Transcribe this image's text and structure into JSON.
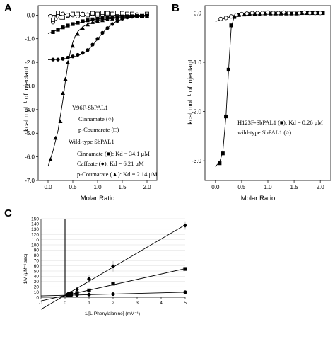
{
  "panels": {
    "a": "A",
    "b": "B",
    "c": "C"
  },
  "chart_data": [
    {
      "panel": "A",
      "type": "scatter",
      "xlabel": "Molar Ratio",
      "ylabel": "kcal mol⁻¹ of injectant",
      "xlim": [
        -0.2,
        2.2
      ],
      "ylim": [
        -7.0,
        0.4
      ],
      "xticks": [
        "0.0",
        "0.5",
        "1.0",
        "1.5",
        "2.0"
      ],
      "yticks": [
        "0.0",
        "-1.0",
        "-2.0",
        "-3.0",
        "-4.0",
        "-5.0",
        "-6.0",
        "-7.0"
      ],
      "legend_lines": [
        {
          "text": "Y96F-SbPAL1"
        },
        {
          "text": "Cinnamate (○)"
        },
        {
          "text": "p-Coumarate (□)"
        },
        {
          "text": "Wild-type SbPAL1"
        },
        {
          "text": "Cinnamate (■): Kd = 34.1 μM"
        },
        {
          "text": "Caffeate (●): Kd = 6.21 μM"
        },
        {
          "text": "p-Coumarate (▲): Kd = 2.14 μM"
        }
      ],
      "series": [
        {
          "marker": "circle-open",
          "x": [
            0.05,
            0.1,
            0.15,
            0.2,
            0.25,
            0.3,
            0.35,
            0.4,
            0.5,
            0.6,
            0.7,
            0.8,
            0.9,
            1.0,
            1.1,
            1.2,
            1.3,
            1.4,
            1.5,
            1.6,
            1.7,
            1.8,
            1.9,
            2.0
          ],
          "y": [
            -0.05,
            -0.3,
            -0.15,
            -0.05,
            -0.1,
            0.05,
            -0.05,
            -0.02,
            0.0,
            -0.05,
            0.05,
            0.02,
            0.05,
            -0.05,
            -0.02,
            0.0,
            0.05,
            -0.02,
            0.02,
            0.0,
            -0.05,
            0.02,
            0.0,
            -0.02
          ]
        },
        {
          "marker": "square-open",
          "x": [
            0.1,
            0.2,
            0.3,
            0.4,
            0.5,
            0.6,
            0.7,
            0.8,
            0.9,
            1.0,
            1.1,
            1.2,
            1.3,
            1.4,
            1.5,
            1.6,
            1.7,
            1.8,
            1.9,
            2.0
          ],
          "y": [
            -0.2,
            0.1,
            -0.1,
            0.0,
            0.05,
            0.05,
            0.02,
            0.0,
            0.08,
            0.05,
            0.1,
            0.08,
            0.05,
            0.1,
            0.08,
            0.05,
            0.05,
            0.0,
            -0.05,
            0.05
          ]
        },
        {
          "marker": "square-filled",
          "x": [
            0.1,
            0.2,
            0.3,
            0.4,
            0.5,
            0.6,
            0.7,
            0.8,
            0.9,
            1.0,
            1.1,
            1.2,
            1.3,
            1.4,
            1.5,
            1.6,
            1.7,
            1.8,
            1.9,
            2.0
          ],
          "y": [
            -0.72,
            -0.62,
            -0.52,
            -0.44,
            -0.38,
            -0.32,
            -0.26,
            -0.22,
            -0.18,
            -0.15,
            -0.12,
            -0.1,
            -0.08,
            -0.07,
            -0.06,
            -0.05,
            -0.05,
            -0.04,
            -0.04,
            -0.03
          ]
        },
        {
          "marker": "circle-filled",
          "x": [
            0.1,
            0.2,
            0.3,
            0.4,
            0.5,
            0.6,
            0.7,
            0.8,
            0.9,
            1.0,
            1.1,
            1.2,
            1.3,
            1.4,
            1.5,
            1.6,
            1.7,
            1.8,
            1.9,
            2.0
          ],
          "y": [
            -1.88,
            -1.88,
            -1.85,
            -1.8,
            -1.75,
            -1.68,
            -1.6,
            -1.48,
            -1.25,
            -1.0,
            -0.75,
            -0.55,
            -0.38,
            -0.25,
            -0.15,
            -0.1,
            -0.07,
            -0.05,
            -0.04,
            -0.03
          ]
        },
        {
          "marker": "triangle-filled",
          "x": [
            0.05,
            0.15,
            0.25,
            0.3,
            0.35,
            0.4,
            0.5,
            0.6,
            0.7,
            0.8,
            0.9,
            1.0,
            1.1,
            1.2,
            1.3,
            1.4,
            1.5,
            1.6,
            1.7,
            1.8,
            1.9,
            2.0
          ],
          "y": [
            -6.1,
            -5.2,
            -4.5,
            -3.3,
            -2.7,
            -2.0,
            -1.3,
            -0.8,
            -0.55,
            -0.4,
            -0.3,
            -0.25,
            -0.22,
            -0.18,
            -0.15,
            -0.12,
            -0.1,
            -0.08,
            -0.06,
            -0.05,
            -0.05,
            -0.04
          ]
        }
      ],
      "fits": [
        {
          "x": [
            0.0,
            0.2,
            0.4,
            0.6,
            0.8,
            1.0,
            1.2,
            1.4,
            1.6,
            1.8,
            2.0
          ],
          "y": [
            -0.78,
            -0.62,
            -0.46,
            -0.34,
            -0.24,
            -0.16,
            -0.11,
            -0.08,
            -0.06,
            -0.05,
            -0.04
          ]
        },
        {
          "x": [
            0.0,
            0.2,
            0.4,
            0.6,
            0.7,
            0.8,
            0.9,
            1.0,
            1.1,
            1.2,
            1.3,
            1.4,
            1.6,
            1.8,
            2.0
          ],
          "y": [
            -1.89,
            -1.88,
            -1.83,
            -1.72,
            -1.63,
            -1.49,
            -1.28,
            -1.02,
            -0.76,
            -0.54,
            -0.37,
            -0.24,
            -0.11,
            -0.06,
            -0.04
          ]
        },
        {
          "x": [
            0.0,
            0.1,
            0.2,
            0.3,
            0.35,
            0.4,
            0.45,
            0.5,
            0.55,
            0.6,
            0.7,
            0.8,
            1.0,
            1.2,
            1.5,
            2.0
          ],
          "y": [
            -6.4,
            -5.75,
            -4.9,
            -3.6,
            -2.8,
            -2.1,
            -1.55,
            -1.15,
            -0.88,
            -0.7,
            -0.5,
            -0.38,
            -0.25,
            -0.17,
            -0.1,
            -0.04
          ]
        },
        {
          "x": [
            0.0,
            2.0
          ],
          "y": [
            0.0,
            0.0
          ]
        }
      ]
    },
    {
      "panel": "B",
      "type": "scatter",
      "xlabel": "Molar Ratio",
      "ylabel": "kcal mol⁻¹ of injectant",
      "xlim": [
        -0.2,
        2.2
      ],
      "ylim": [
        -3.4,
        0.15
      ],
      "xticks": [
        "0.0",
        "0.5",
        "1.0",
        "1.5",
        "2.0"
      ],
      "yticks": [
        "0.0",
        "-1.0",
        "-2.0",
        "-3.0"
      ],
      "legend_lines": [
        {
          "text": "H123F-SbPAL1 (■): Kd = 0.26 μM"
        },
        {
          "text": "wild-type SbPAL1 (○)"
        }
      ],
      "series": [
        {
          "marker": "square-filled",
          "x": [
            0.08,
            0.14,
            0.2,
            0.25,
            0.3,
            0.36,
            0.45,
            0.55,
            0.65,
            0.75,
            0.85,
            0.95,
            1.05,
            1.15,
            1.25,
            1.35,
            1.45,
            1.55,
            1.65,
            1.75,
            1.85,
            1.95,
            2.05
          ],
          "y": [
            -3.05,
            -2.85,
            -2.1,
            -1.15,
            -0.25,
            -0.08,
            -0.04,
            -0.03,
            -0.02,
            -0.02,
            -0.02,
            -0.01,
            -0.01,
            -0.01,
            -0.01,
            -0.01,
            -0.01,
            -0.01,
            0.0,
            0.0,
            0.0,
            0.0,
            0.0
          ]
        },
        {
          "marker": "circle-open",
          "x": [
            0.1,
            0.2,
            0.3,
            0.4,
            0.5,
            0.6,
            0.7,
            0.8,
            0.9,
            1.0,
            1.1,
            1.2,
            1.3,
            1.4,
            1.5,
            1.6,
            1.7,
            1.8,
            1.9,
            2.0
          ],
          "y": [
            -0.12,
            -0.1,
            -0.07,
            -0.04,
            -0.02,
            -0.01,
            0.0,
            0.0,
            0.0,
            0.01,
            0.0,
            0.0,
            0.01,
            0.0,
            0.0,
            0.0,
            0.01,
            0.0,
            0.0,
            0.0
          ]
        }
      ],
      "fits": [
        {
          "x": [
            0.0,
            0.08,
            0.14,
            0.2,
            0.25,
            0.3,
            0.35,
            0.4,
            0.5,
            0.7,
            1.0,
            1.5,
            2.05
          ],
          "y": [
            -3.12,
            -3.02,
            -2.82,
            -2.1,
            -1.15,
            -0.3,
            -0.1,
            -0.05,
            -0.03,
            -0.02,
            -0.01,
            -0.01,
            0.0
          ]
        },
        {
          "x": [
            0.0,
            0.2,
            0.4,
            0.6,
            0.8,
            1.0,
            1.5,
            2.05
          ],
          "y": [
            -0.17,
            -0.1,
            -0.04,
            -0.01,
            0.0,
            0.0,
            0.01,
            0.0
          ]
        }
      ]
    },
    {
      "panel": "C",
      "type": "line",
      "xlabel": "1/[L-Phenylalanine] (mM⁻¹)",
      "ylabel": "1/V (μM⁻¹ sec)",
      "xlim": [
        -1,
        5
      ],
      "ylim": [
        0,
        150
      ],
      "xticks": [
        "-1",
        "0",
        "1",
        "2",
        "3",
        "4",
        "5"
      ],
      "yticks": [
        "0",
        "10",
        "20",
        "30",
        "40",
        "50",
        "60",
        "70",
        "80",
        "90",
        "100",
        "110",
        "120",
        "130",
        "140",
        "150"
      ],
      "series": [
        {
          "marker": "diamond",
          "x": [
            0.125,
            0.25,
            0.5,
            1.0,
            2.0,
            5.0
          ],
          "y": [
            6.5,
            8.5,
            15,
            35,
            59,
            137
          ],
          "err": [
            1.5,
            2,
            3,
            8,
            10,
            8
          ]
        },
        {
          "marker": "square",
          "x": [
            0.125,
            0.25,
            0.5,
            1.0,
            2.0,
            5.0
          ],
          "y": [
            4.5,
            5.5,
            8,
            13,
            26,
            54
          ],
          "err": [
            1,
            1,
            1.5,
            2,
            3,
            2
          ]
        },
        {
          "marker": "circle",
          "x": [
            0.125,
            0.25,
            0.5,
            1.0,
            2.0,
            5.0
          ],
          "y": [
            3.8,
            4,
            4.5,
            5.2,
            6,
            9.6
          ],
          "err": [
            0.3,
            0.3,
            0.3,
            0.4,
            0.4,
            0.5
          ]
        }
      ]
    }
  ]
}
